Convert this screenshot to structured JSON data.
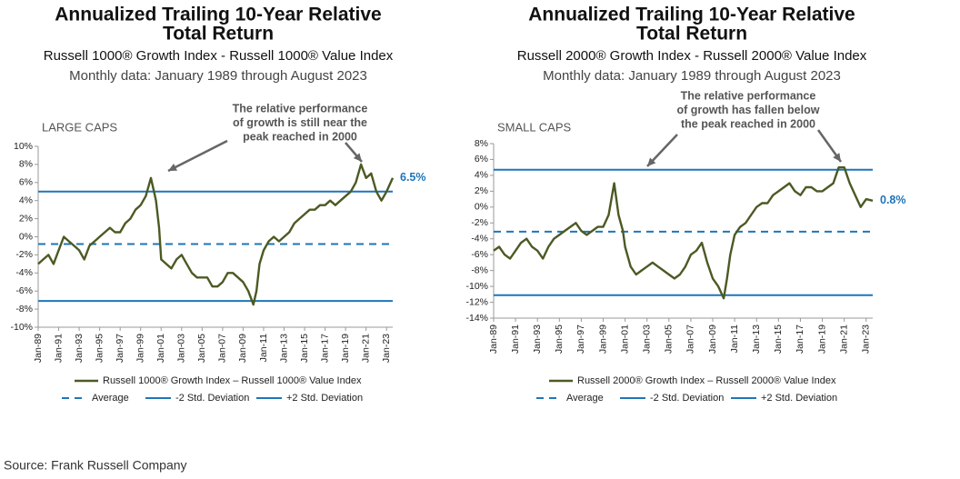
{
  "chart_data": [
    {
      "type": "line",
      "title": [
        "Annualized Trailing 10-Year Relative",
        "Total Return"
      ],
      "subtitle": "Russell 1000® Growth Index - Russell 1000® Value Index",
      "note": "Monthly data: January 1989 through August 2023",
      "panel_label": "LARGE CAPS",
      "annotation": [
        "The relative performance",
        "of growth is still near the",
        "peak reached in 2000"
      ],
      "last_value_label": "6.5%",
      "x": [
        1989,
        1989.5,
        1990,
        1990.5,
        1991,
        1991.5,
        1992,
        1992.5,
        1993,
        1993.5,
        1994,
        1994.5,
        1995,
        1995.5,
        1996,
        1996.5,
        1997,
        1997.5,
        1998,
        1998.5,
        1999,
        1999.5,
        2000,
        2000.3,
        2000.5,
        2000.8,
        2001,
        2001.5,
        2002,
        2002.5,
        2003,
        2003.5,
        2004,
        2004.5,
        2005,
        2005.5,
        2006,
        2006.5,
        2007,
        2007.5,
        2008,
        2008.5,
        2009,
        2009.5,
        2010,
        2010.3,
        2010.6,
        2011,
        2011.5,
        2012,
        2012.5,
        2013,
        2013.5,
        2014,
        2014.5,
        2015,
        2015.5,
        2016,
        2016.5,
        2017,
        2017.5,
        2018,
        2018.5,
        2019,
        2019.5,
        2020,
        2020.5,
        2021,
        2021.5,
        2022,
        2022.5,
        2023,
        2023.6
      ],
      "series": [
        {
          "name": "Russell 1000® Growth Index – Russell 1000® Value Index",
          "color": "#4b5a23",
          "values": [
            -3,
            -2.5,
            -2,
            -3,
            -1.5,
            0,
            -0.5,
            -1,
            -1.5,
            -2.5,
            -1,
            -0.5,
            0,
            0.5,
            1,
            0.5,
            0.5,
            1.5,
            2,
            3,
            3.5,
            4.5,
            6.5,
            5,
            4,
            1,
            -2.5,
            -3,
            -3.5,
            -2.5,
            -2,
            -3,
            -4,
            -4.5,
            -4.5,
            -4.5,
            -5.5,
            -5.5,
            -5,
            -4,
            -4,
            -4.5,
            -5,
            -6,
            -7.5,
            -6,
            -3,
            -1.5,
            -0.5,
            0,
            -0.5,
            0,
            0.5,
            1.5,
            2,
            2.5,
            3,
            3,
            3.5,
            3.5,
            4,
            3.5,
            4,
            4.5,
            5,
            6,
            8,
            6.5,
            7,
            5,
            4,
            5,
            6.5
          ]
        }
      ],
      "reference_lines": [
        {
          "name": "Average",
          "value": -0.8,
          "style": "dashed",
          "color": "#1f75b8"
        },
        {
          "name": "-2 Std. Deviation",
          "value": -7.1,
          "style": "solid",
          "color": "#1f75b8"
        },
        {
          "name": "+2 Std. Deviation",
          "value": 5.0,
          "style": "solid",
          "color": "#1f75b8"
        }
      ],
      "xlim": [
        1989,
        2023.6
      ],
      "xticks": [
        {
          "value": 1989,
          "label": "Jan-89"
        },
        {
          "value": 1991,
          "label": "Jan-91"
        },
        {
          "value": 1993,
          "label": "Jan-93"
        },
        {
          "value": 1995,
          "label": "Jan-95"
        },
        {
          "value": 1997,
          "label": "Jan-97"
        },
        {
          "value": 1999,
          "label": "Jan-99"
        },
        {
          "value": 2001,
          "label": "Jan-01"
        },
        {
          "value": 2003,
          "label": "Jan-03"
        },
        {
          "value": 2005,
          "label": "Jan-05"
        },
        {
          "value": 2007,
          "label": "Jan-07"
        },
        {
          "value": 2009,
          "label": "Jan-09"
        },
        {
          "value": 2011,
          "label": "Jan-11"
        },
        {
          "value": 2013,
          "label": "Jan-13"
        },
        {
          "value": 2015,
          "label": "Jan-15"
        },
        {
          "value": 2017,
          "label": "Jan-17"
        },
        {
          "value": 2019,
          "label": "Jan-19"
        },
        {
          "value": 2021,
          "label": "Jan-21"
        },
        {
          "value": 2023,
          "label": "Jan-23"
        }
      ],
      "ylim": [
        -10,
        10
      ],
      "yticks": [
        {
          "value": -10,
          "label": "-10%"
        },
        {
          "value": -8,
          "label": "-8%"
        },
        {
          "value": -6,
          "label": "-6%"
        },
        {
          "value": -4,
          "label": "-4%"
        },
        {
          "value": -2,
          "label": "-2%"
        },
        {
          "value": 0,
          "label": "0%"
        },
        {
          "value": 2,
          "label": "2%"
        },
        {
          "value": 4,
          "label": "4%"
        },
        {
          "value": 6,
          "label": "6%"
        },
        {
          "value": 8,
          "label": "8%"
        },
        {
          "value": 10,
          "label": "10%"
        }
      ]
    },
    {
      "type": "line",
      "title": [
        "Annualized Trailing 10-Year Relative",
        "Total Return"
      ],
      "subtitle": "Russell 2000® Growth Index - Russell 2000® Value Index",
      "note": "Monthly data: January 1989 through August 2023",
      "panel_label": "SMALL CAPS",
      "annotation": [
        "The relative performance",
        "of growth has fallen below",
        "the peak reached in 2000"
      ],
      "last_value_label": "0.8%",
      "x": [
        1989,
        1989.5,
        1990,
        1990.5,
        1991,
        1991.5,
        1992,
        1992.5,
        1993,
        1993.5,
        1994,
        1994.5,
        1995,
        1995.5,
        1996,
        1996.5,
        1997,
        1997.5,
        1998,
        1998.5,
        1999,
        1999.5,
        2000,
        2000.4,
        2000.8,
        2001,
        2001.5,
        2002,
        2002.5,
        2003,
        2003.5,
        2004,
        2004.5,
        2005,
        2005.5,
        2006,
        2006.5,
        2007,
        2007.5,
        2008,
        2008.5,
        2009,
        2009.5,
        2010,
        2010.3,
        2010.6,
        2011,
        2011.5,
        2012,
        2012.5,
        2013,
        2013.5,
        2014,
        2014.5,
        2015,
        2015.5,
        2016,
        2016.5,
        2017,
        2017.5,
        2018,
        2018.5,
        2019,
        2019.5,
        2020,
        2020.5,
        2021,
        2021.5,
        2022,
        2022.5,
        2023,
        2023.6
      ],
      "series": [
        {
          "name": "Russell 2000® Growth Index – Russell 2000® Value Index",
          "color": "#4b5a23",
          "values": [
            -5.5,
            -5,
            -6,
            -6.5,
            -5.5,
            -4.5,
            -4,
            -5,
            -5.5,
            -6.5,
            -5,
            -4,
            -3.5,
            -3,
            -2.5,
            -2,
            -3,
            -3.5,
            -3,
            -2.5,
            -2.5,
            -1,
            3,
            -1,
            -3,
            -5,
            -7.5,
            -8.5,
            -8,
            -7.5,
            -7,
            -7.5,
            -8,
            -8.5,
            -9,
            -8.5,
            -7.5,
            -6,
            -5.5,
            -4.5,
            -7,
            -9,
            -10,
            -11.5,
            -9,
            -6,
            -3.5,
            -2.5,
            -2,
            -1,
            0,
            0.5,
            0.5,
            1.5,
            2,
            2.5,
            3,
            2,
            1.5,
            2.5,
            2.5,
            2,
            2,
            2.5,
            3,
            5,
            5,
            3,
            1.5,
            0,
            1,
            0.8
          ]
        }
      ],
      "reference_lines": [
        {
          "name": "Average",
          "value": -3.1,
          "style": "dashed",
          "color": "#1f75b8"
        },
        {
          "name": "-2 Std. Deviation",
          "value": -11.1,
          "style": "solid",
          "color": "#1f75b8"
        },
        {
          "name": "+2 Std. Deviation",
          "value": 4.7,
          "style": "solid",
          "color": "#1f75b8"
        }
      ],
      "xlim": [
        1989,
        2023.6
      ],
      "xticks": [
        {
          "value": 1989,
          "label": "Jan-89"
        },
        {
          "value": 1991,
          "label": "Jan-91"
        },
        {
          "value": 1993,
          "label": "Jan-93"
        },
        {
          "value": 1995,
          "label": "Jan-95"
        },
        {
          "value": 1997,
          "label": "Jan-97"
        },
        {
          "value": 1999,
          "label": "Jan-99"
        },
        {
          "value": 2001,
          "label": "Jan-01"
        },
        {
          "value": 2003,
          "label": "Jan-03"
        },
        {
          "value": 2005,
          "label": "Jan-05"
        },
        {
          "value": 2007,
          "label": "Jan-07"
        },
        {
          "value": 2009,
          "label": "Jan-09"
        },
        {
          "value": 2011,
          "label": "Jan-11"
        },
        {
          "value": 2013,
          "label": "Jan-13"
        },
        {
          "value": 2015,
          "label": "Jan-15"
        },
        {
          "value": 2017,
          "label": "Jan-17"
        },
        {
          "value": 2019,
          "label": "Jan-19"
        },
        {
          "value": 2021,
          "label": "Jan-21"
        },
        {
          "value": 2023,
          "label": "Jan-23"
        }
      ],
      "ylim": [
        -14,
        8
      ],
      "yticks": [
        {
          "value": -14,
          "label": "-14%"
        },
        {
          "value": -12,
          "label": "-12%"
        },
        {
          "value": -10,
          "label": "-10%"
        },
        {
          "value": -8,
          "label": "-8%"
        },
        {
          "value": -6,
          "label": "-6%"
        },
        {
          "value": -4,
          "label": "-4%"
        },
        {
          "value": -2,
          "label": "-2%"
        },
        {
          "value": 0,
          "label": "0%"
        },
        {
          "value": 2,
          "label": "2%"
        },
        {
          "value": 4,
          "label": "4%"
        },
        {
          "value": 6,
          "label": "6%"
        },
        {
          "value": 8,
          "label": "8%"
        }
      ]
    }
  ],
  "source": "Source: Frank Russell Company"
}
